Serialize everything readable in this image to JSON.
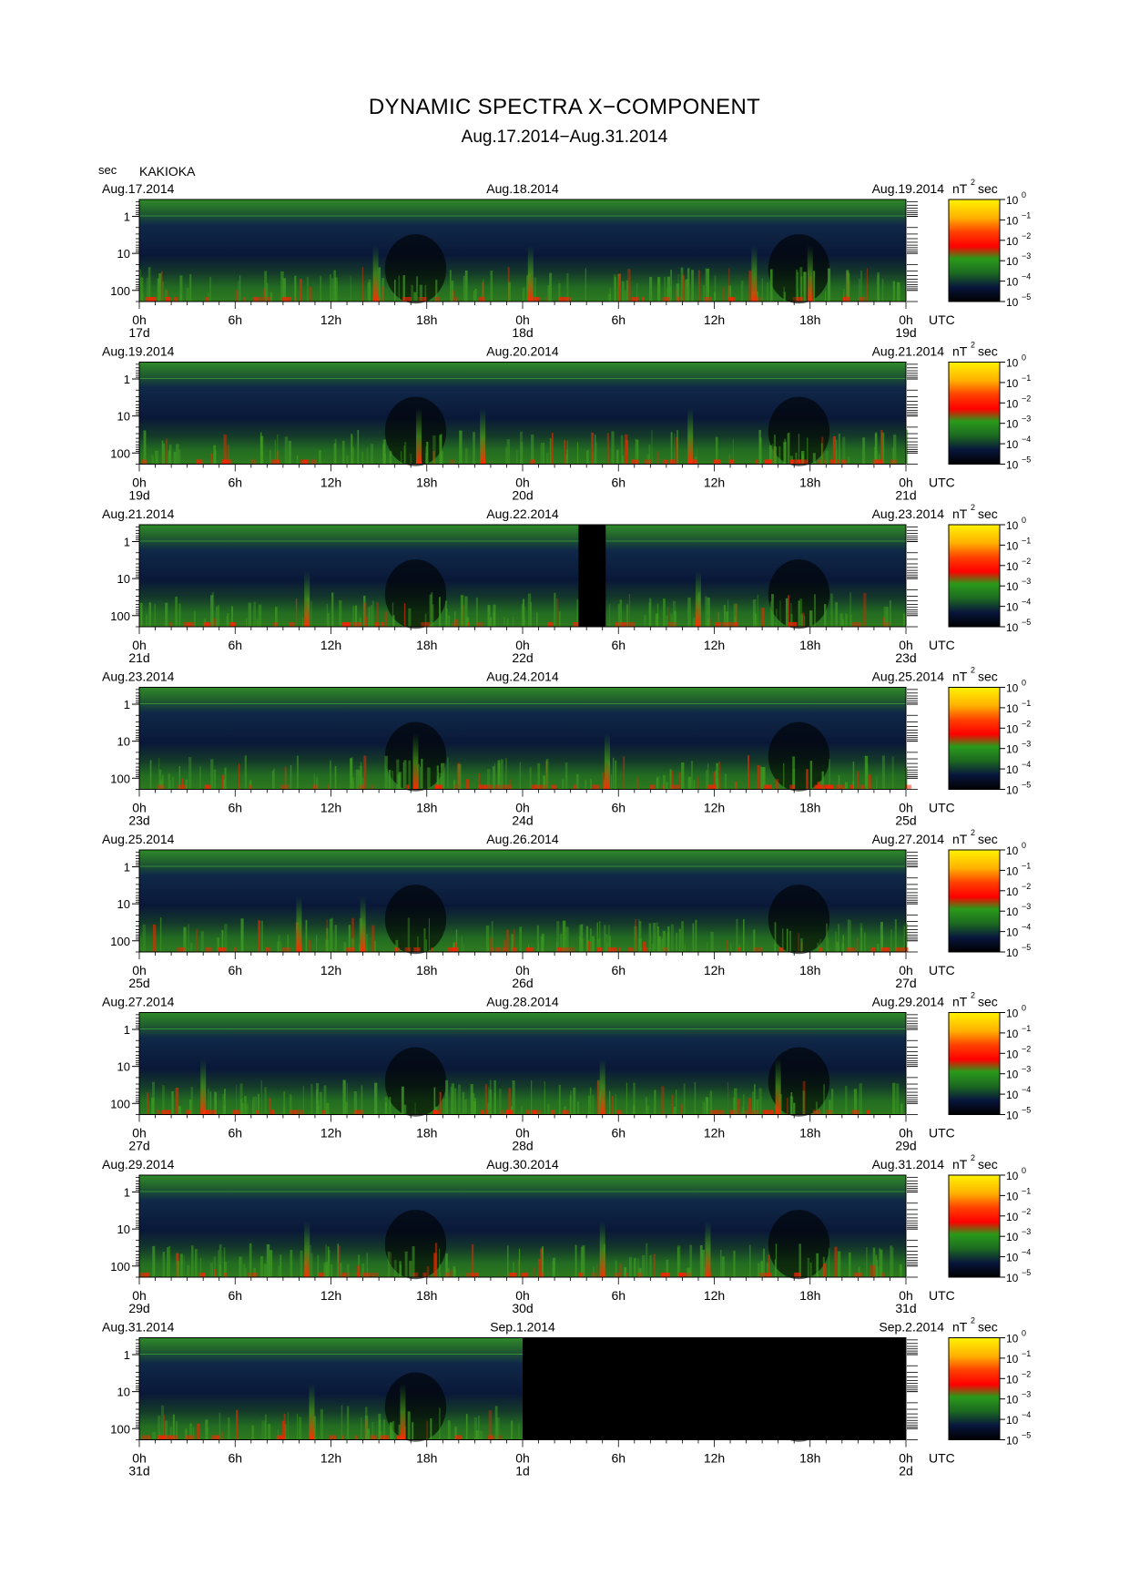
{
  "title": "DYNAMIC SPECTRA X−COMPONENT",
  "subtitle": "Aug.17.2014−Aug.31.2014",
  "station": "KAKIOKA",
  "y_unit": "sec",
  "x_unit": "UTC",
  "colorbar_unit": "nT",
  "colorbar_unit_sup": "2",
  "colorbar_unit_tail": "sec",
  "colorbar_labels": [
    "10",
    "10",
    "10",
    "10",
    "10",
    "10"
  ],
  "colorbar_exponents": [
    "0",
    "−1",
    "−2",
    "−3",
    "−4",
    "−5"
  ],
  "colorbar_colors": [
    "#ffe400",
    "#ff7a00",
    "#ff1a00",
    "#1f8a1f",
    "#06163f",
    "#000000"
  ],
  "y_tick_labels": [
    "1",
    "10",
    "100"
  ],
  "x_tick_labels": [
    "0h",
    "6h",
    "12h",
    "18h",
    "0h",
    "6h",
    "12h",
    "18h",
    "0h"
  ],
  "chart_data": {
    "type": "heatmap",
    "title": "DYNAMIC SPECTRA X−COMPONENT",
    "xlabel": "UTC",
    "ylabel": "sec",
    "y_scale": "log",
    "ylim": [
      0.35,
      200
    ],
    "xlim_hours": [
      0,
      48
    ],
    "colorbar": {
      "label": "nT² sec",
      "scale": "log",
      "range": [
        1e-05,
        1
      ]
    },
    "panels": [
      {
        "left_date": "Aug.17.2014",
        "mid_date": "Aug.18.2014",
        "right_date": "Aug.19.2014",
        "day_labels": [
          "17d",
          "18d",
          "19d"
        ],
        "gaps": [],
        "bursts": [
          14.8,
          24.5,
          38.5,
          42.0
        ]
      },
      {
        "left_date": "Aug.19.2014",
        "mid_date": "Aug.20.2014",
        "right_date": "Aug.21.2014",
        "day_labels": [
          "19d",
          "20d",
          "21d"
        ],
        "gaps": [],
        "bursts": [
          17.5,
          21.5,
          34.5
        ]
      },
      {
        "left_date": "Aug.21.2014",
        "mid_date": "Aug.22.2014",
        "right_date": "Aug.23.2014",
        "day_labels": [
          "21d",
          "22d",
          "23d"
        ],
        "gaps": [
          [
            27.5,
            29.2
          ]
        ],
        "bursts": [
          10.5,
          35.0
        ]
      },
      {
        "left_date": "Aug.23.2014",
        "mid_date": "Aug.24.2014",
        "right_date": "Aug.25.2014",
        "day_labels": [
          "23d",
          "24d",
          "25d"
        ],
        "gaps": [],
        "bursts": [
          17.3,
          29.3
        ]
      },
      {
        "left_date": "Aug.25.2014",
        "mid_date": "Aug.26.2014",
        "right_date": "Aug.27.2014",
        "day_labels": [
          "25d",
          "26d",
          "27d"
        ],
        "gaps": [],
        "bursts": [
          10.0,
          14.0
        ]
      },
      {
        "left_date": "Aug.27.2014",
        "mid_date": "Aug.28.2014",
        "right_date": "Aug.29.2014",
        "day_labels": [
          "27d",
          "28d",
          "29d"
        ],
        "gaps": [],
        "bursts": [
          4.0,
          29.0,
          40.0
        ]
      },
      {
        "left_date": "Aug.29.2014",
        "mid_date": "Aug.30.2014",
        "right_date": "Aug.31.2014",
        "day_labels": [
          "29d",
          "30d",
          "31d"
        ],
        "gaps": [],
        "bursts": [
          10.5,
          29.0,
          35.6
        ]
      },
      {
        "left_date": "Aug.31.2014",
        "mid_date": "Sep.1.2014",
        "right_date": "Sep.2.2014",
        "day_labels": [
          "31d",
          "1d",
          "2d"
        ],
        "gaps": [
          [
            24,
            48
          ]
        ],
        "bursts": [
          10.8,
          16.5
        ]
      }
    ]
  }
}
